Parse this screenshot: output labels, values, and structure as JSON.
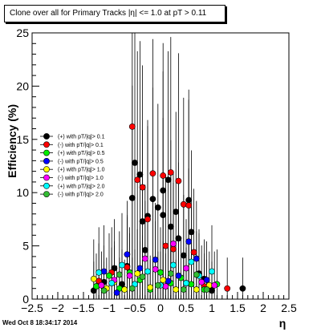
{
  "title": "Clone  over all for Primary Tracks |η| <= 1.0 at pT > 0.11",
  "timestamp": "Wed Oct  8 18:34:17 2014",
  "chart_data": {
    "type": "scatter",
    "xlabel": "η",
    "ylabel": "Efficiency (%)",
    "xlim": [
      -2.5,
      2.5
    ],
    "ylim": [
      0,
      25
    ],
    "x_ticks": [
      -2.5,
      -2,
      -1.5,
      -1,
      -0.5,
      0,
      0.5,
      1,
      1.5,
      2,
      2.5
    ],
    "x_tick_labels": [
      "−2.5",
      "−2",
      "−1.5",
      "−1",
      "−0.5",
      "0",
      "0.5",
      "1",
      "1.5",
      "2",
      "2.5"
    ],
    "y_ticks": [
      0,
      5,
      10,
      15,
      20,
      25
    ],
    "y_tick_labels": [
      "0",
      "5",
      "10",
      "15",
      "20",
      "25"
    ],
    "grid": false,
    "legend_position": "left",
    "series": [
      {
        "name": "(+) with pT/|q|> 0.1",
        "color": "#000000",
        "points": [
          [
            -1.3,
            0.8
          ],
          [
            -1.1,
            1.6
          ],
          [
            -0.9,
            2.9
          ],
          [
            -0.75,
            1.4
          ],
          [
            -0.65,
            3.1
          ],
          [
            -0.55,
            9.5
          ],
          [
            -0.5,
            12.8
          ],
          [
            -0.4,
            11.7
          ],
          [
            -0.35,
            7.3
          ],
          [
            -0.3,
            4.6
          ],
          [
            -0.25,
            7.8
          ],
          [
            -0.15,
            9.4
          ],
          [
            -0.05,
            8.6
          ],
          [
            0.05,
            10.2
          ],
          [
            0.05,
            7.9
          ],
          [
            0.15,
            11.2
          ],
          [
            0.2,
            6.8
          ],
          [
            0.3,
            8.2
          ],
          [
            0.35,
            5.7
          ],
          [
            0.45,
            4.1
          ],
          [
            0.55,
            9.3
          ],
          [
            0.6,
            6.3
          ],
          [
            0.75,
            2.4
          ],
          [
            0.85,
            1.9
          ],
          [
            1.0,
            0.8
          ],
          [
            1.6,
            1.0
          ]
        ]
      },
      {
        "name": "(-) with pT/|q|> 0.1",
        "color": "#ff0000",
        "points": [
          [
            -1.2,
            1.7
          ],
          [
            -0.95,
            2.5
          ],
          [
            -0.65,
            3.0
          ],
          [
            -0.55,
            16.2
          ],
          [
            -0.45,
            11.2
          ],
          [
            -0.35,
            10.5
          ],
          [
            -0.25,
            7.5
          ],
          [
            -0.15,
            11.8
          ],
          [
            0.05,
            11.6
          ],
          [
            0.1,
            5.0
          ],
          [
            0.2,
            11.9
          ],
          [
            0.25,
            4.7
          ],
          [
            0.35,
            11.1
          ],
          [
            0.45,
            8.9
          ],
          [
            0.55,
            8.8
          ],
          [
            0.65,
            4.4
          ],
          [
            0.85,
            1.2
          ],
          [
            1.3,
            1.0
          ]
        ]
      },
      {
        "name": "(+) with pT/|q|> 0.5",
        "color": "#00ee00",
        "points": [
          [
            -1.25,
            1.2
          ],
          [
            -1.0,
            2.2
          ],
          [
            -0.8,
            1.0
          ],
          [
            -0.6,
            2.5
          ],
          [
            -0.4,
            1.8
          ],
          [
            -0.2,
            0.9
          ],
          [
            0.0,
            2.5
          ],
          [
            0.2,
            1.5
          ],
          [
            0.4,
            2.0
          ],
          [
            0.6,
            1.4
          ],
          [
            0.85,
            0.9
          ],
          [
            1.1,
            1.4
          ]
        ]
      },
      {
        "name": "(-) with pT/|q|> 0.5",
        "color": "#0000ff",
        "points": [
          [
            -1.1,
            2.6
          ],
          [
            -0.85,
            0.6
          ],
          [
            -0.65,
            4.2
          ],
          [
            -0.4,
            2.9
          ],
          [
            -0.1,
            3.7
          ],
          [
            0.15,
            1.7
          ],
          [
            0.35,
            2.2
          ],
          [
            0.55,
            5.4
          ],
          [
            0.7,
            3.8
          ],
          [
            0.9,
            1.8
          ]
        ]
      },
      {
        "name": "(+) with pT/|q|> 1.0",
        "color": "#ffff00",
        "points": [
          [
            -1.3,
            1.9
          ],
          [
            -1.05,
            1.0
          ],
          [
            -0.9,
            1.6
          ],
          [
            -0.7,
            0.9
          ],
          [
            -0.45,
            2.4
          ],
          [
            -0.2,
            1.1
          ],
          [
            0.05,
            1.8
          ],
          [
            0.3,
            0.9
          ],
          [
            0.5,
            1.5
          ],
          [
            0.7,
            0.9
          ],
          [
            0.95,
            1.3
          ]
        ]
      },
      {
        "name": "(-) with pT/|q|> 1.0",
        "color": "#ff00ff",
        "points": [
          [
            -1.15,
            1.3
          ],
          [
            -0.9,
            1.8
          ],
          [
            -0.6,
            2.2
          ],
          [
            -0.3,
            3.8
          ],
          [
            -0.1,
            2.8
          ],
          [
            0.1,
            1.2
          ],
          [
            0.25,
            5.2
          ],
          [
            0.5,
            2.9
          ],
          [
            0.8,
            1.6
          ],
          [
            1.05,
            1.3
          ]
        ]
      },
      {
        "name": "(+) with pT/|q|> 2.0",
        "color": "#00ffff",
        "points": [
          [
            -1.2,
            2.5
          ],
          [
            -0.95,
            1.5
          ],
          [
            -0.75,
            3.2
          ],
          [
            -0.5,
            1.4
          ],
          [
            -0.25,
            2.6
          ],
          [
            0.0,
            1.3
          ],
          [
            0.25,
            3.2
          ],
          [
            0.5,
            1.5
          ],
          [
            0.6,
            3.5
          ],
          [
            0.75,
            2.2
          ],
          [
            1.0,
            2.6
          ]
        ]
      },
      {
        "name": "(-) with pT/|q|> 2.0",
        "color": "#33bb33",
        "points": [
          [
            -1.1,
            0.8
          ],
          [
            -0.8,
            2.3
          ],
          [
            -0.55,
            1.0
          ],
          [
            -0.35,
            2.1
          ],
          [
            -0.05,
            1.3
          ],
          [
            0.2,
            2.4
          ],
          [
            0.45,
            0.9
          ],
          [
            0.7,
            2.3
          ],
          [
            0.9,
            0.9
          ]
        ]
      }
    ]
  }
}
